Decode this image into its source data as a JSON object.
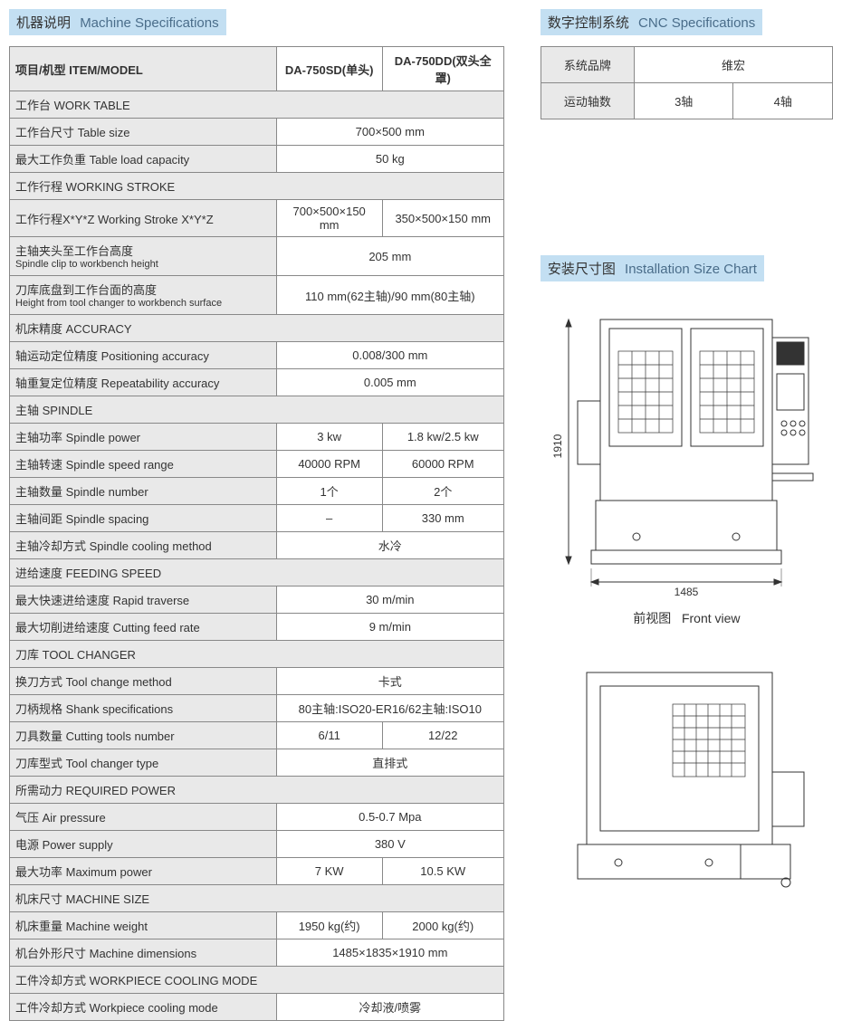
{
  "headers": {
    "machine_spec_cn": "机器说明",
    "machine_spec_en": "Machine Specifications",
    "cnc_spec_cn": "数字控制系统",
    "cnc_spec_en": "CNC Specifications",
    "install_cn": "安装尺寸图",
    "install_en": "Installation Size Chart"
  },
  "colors": {
    "header_bg": "#c3dff2",
    "label_bg": "#e9e9e9",
    "border": "#888888"
  },
  "spec_table": {
    "head_item": "项目/机型 ITEM/MODEL",
    "head_m1": "DA-750SD(单头)",
    "head_m2": "DA-750DD(双头全罩)",
    "sections": [
      {
        "title": "工作台 WORK TABLE",
        "rows": [
          {
            "label": "工作台尺寸 Table size",
            "span": "700×500 mm"
          },
          {
            "label": "最大工作负重 Table load capacity",
            "span": "50 kg"
          }
        ]
      },
      {
        "title": "工作行程 WORKING STROKE",
        "rows": [
          {
            "label": "工作行程X*Y*Z  Working Stroke X*Y*Z",
            "v1": "700×500×150 mm",
            "v2": "350×500×150 mm"
          },
          {
            "label": "主轴夹头至工作台高度",
            "sub": "Spindle clip to workbench height",
            "span": "205 mm"
          },
          {
            "label": "刀库底盘到工作台面的高度",
            "sub": "Height from tool changer to workbench surface",
            "span": "110 mm(62主轴)/90 mm(80主轴)"
          }
        ]
      },
      {
        "title": "机床精度 ACCURACY",
        "rows": [
          {
            "label": "轴运动定位精度 Positioning accuracy",
            "span": "0.008/300 mm"
          },
          {
            "label": "轴重复定位精度 Repeatability accuracy",
            "span": "0.005 mm"
          }
        ]
      },
      {
        "title": "主轴 SPINDLE",
        "rows": [
          {
            "label": "主轴功率 Spindle power",
            "v1": "3 kw",
            "v2": "1.8 kw/2.5 kw"
          },
          {
            "label": "主轴转速 Spindle speed range",
            "v1": "40000 RPM",
            "v2": "60000 RPM"
          },
          {
            "label": "主轴数量 Spindle number",
            "v1": "1个",
            "v2": "2个"
          },
          {
            "label": "主轴间距 Spindle spacing",
            "v1": "–",
            "v2": "330 mm"
          },
          {
            "label": "主轴冷却方式 Spindle cooling method",
            "span": "水冷"
          }
        ]
      },
      {
        "title": "进给速度 FEEDING SPEED",
        "rows": [
          {
            "label": "最大快速进给速度 Rapid traverse",
            "span": "30 m/min"
          },
          {
            "label": "最大切削进给速度 Cutting feed rate",
            "span": "9 m/min"
          }
        ]
      },
      {
        "title": "刀库 TOOL CHANGER",
        "rows": [
          {
            "label": "换刀方式 Tool change method",
            "span": "卡式"
          },
          {
            "label": "刀柄规格 Shank specifications",
            "span": "80主轴:ISO20-ER16/62主轴:ISO10"
          },
          {
            "label": "刀具数量 Cutting tools number",
            "v1": "6/11",
            "v2": "12/22"
          },
          {
            "label": "刀库型式 Tool changer type",
            "span": "直排式"
          }
        ]
      },
      {
        "title": "所需动力 REQUIRED POWER",
        "rows": [
          {
            "label": "气压 Air pressure",
            "span": "0.5-0.7 Mpa"
          },
          {
            "label": "电源 Power supply",
            "span": "380 V"
          },
          {
            "label": "最大功率 Maximum power",
            "v1": "7 KW",
            "v2": "10.5 KW"
          }
        ]
      },
      {
        "title": "机床尺寸 MACHINE SIZE",
        "rows": [
          {
            "label": "机床重量 Machine weight",
            "v1": "1950 kg(约)",
            "v2": "2000 kg(约)"
          },
          {
            "label": "机台外形尺寸 Machine dimensions",
            "span": "1485×1835×1910 mm"
          }
        ]
      },
      {
        "title": "工件冷却方式 WORKPIECE COOLING MODE",
        "rows": [
          {
            "label": "工件冷却方式 Workpiece cooling mode",
            "span": "冷却液/喷雾"
          }
        ]
      }
    ]
  },
  "cnc_table": {
    "rows": [
      {
        "label": "系统品牌",
        "span": "维宏"
      },
      {
        "label": "运动轴数",
        "v1": "3轴",
        "v2": "4轴"
      }
    ]
  },
  "diagram": {
    "width_label": "1485",
    "height_label": "1910",
    "front_view_cn": "前视图",
    "front_view_en": "Front view"
  }
}
